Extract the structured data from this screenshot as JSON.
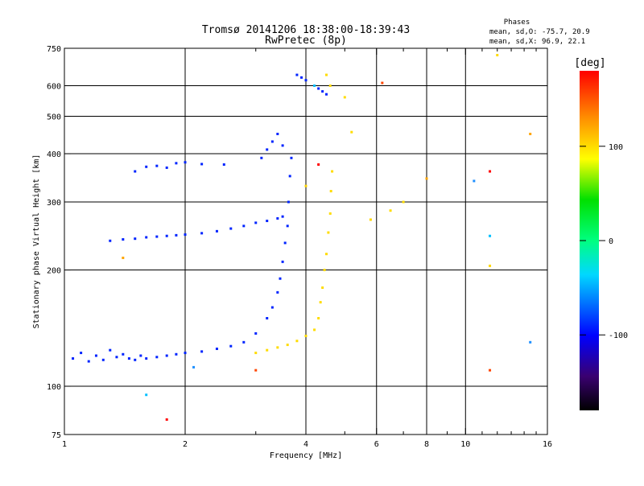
{
  "chart_data": {
    "type": "scatter",
    "title": "Tromsø 20141206 18:38:00-18:39:43",
    "subtitle": "RwPretec (8p)",
    "xlabel": "Frequency [MHz]",
    "ylabel": "Stationary phase Virtual Height [km]",
    "x_scale": "log",
    "y_scale": "log",
    "xlim": [
      1,
      16
    ],
    "ylim": [
      75,
      750
    ],
    "x_ticks": [
      1,
      2,
      4,
      6,
      8,
      10,
      16
    ],
    "x_minor_ticks": [
      3,
      5,
      7,
      9,
      11,
      12,
      13,
      14,
      15
    ],
    "x_gridlines": [
      2,
      4,
      6,
      8,
      10
    ],
    "y_ticks": [
      75,
      100,
      200,
      300,
      400,
      500,
      600,
      750
    ],
    "y_gridlines": [
      100,
      200,
      300,
      400,
      500,
      600
    ],
    "grid": true,
    "phases_legend": {
      "title": "Phases",
      "line1": "mean, sd,O: -75.7, 20.9",
      "line2": "mean, sd,X:  96.9, 22.1"
    },
    "colorbar": {
      "unit": "[deg]",
      "range": [
        -180,
        180
      ],
      "ticks": [
        100,
        0,
        -100
      ]
    },
    "series": [
      {
        "name": "O",
        "color_phase": -90,
        "points": [
          [
            1.05,
            118
          ],
          [
            1.1,
            122
          ],
          [
            1.15,
            116
          ],
          [
            1.2,
            120
          ],
          [
            1.25,
            117
          ],
          [
            1.3,
            124
          ],
          [
            1.35,
            119
          ],
          [
            1.4,
            121
          ],
          [
            1.45,
            118
          ],
          [
            1.5,
            117
          ],
          [
            1.55,
            120
          ],
          [
            1.6,
            118
          ],
          [
            1.7,
            119
          ],
          [
            1.8,
            120
          ],
          [
            1.9,
            121
          ],
          [
            2.0,
            122
          ],
          [
            2.2,
            123
          ],
          [
            2.4,
            125
          ],
          [
            2.6,
            127
          ],
          [
            2.8,
            130
          ],
          [
            3.0,
            137
          ],
          [
            3.2,
            150
          ],
          [
            3.3,
            160
          ],
          [
            3.4,
            175
          ],
          [
            3.45,
            190
          ],
          [
            3.5,
            210
          ],
          [
            3.55,
            235
          ],
          [
            3.6,
            260
          ],
          [
            3.62,
            300
          ],
          [
            3.65,
            350
          ],
          [
            3.68,
            390
          ],
          [
            1.3,
            238
          ],
          [
            1.4,
            240
          ],
          [
            1.5,
            241
          ],
          [
            1.6,
            243
          ],
          [
            1.7,
            244
          ],
          [
            1.8,
            245
          ],
          [
            1.9,
            246
          ],
          [
            2.0,
            247
          ],
          [
            2.2,
            249
          ],
          [
            2.4,
            252
          ],
          [
            2.6,
            256
          ],
          [
            2.8,
            260
          ],
          [
            3.0,
            265
          ],
          [
            3.2,
            268
          ],
          [
            3.4,
            272
          ],
          [
            3.5,
            275
          ],
          [
            1.5,
            360
          ],
          [
            1.6,
            370
          ],
          [
            1.7,
            372
          ],
          [
            1.8,
            368
          ],
          [
            1.9,
            378
          ],
          [
            2.0,
            380
          ],
          [
            2.2,
            376
          ],
          [
            2.5,
            375
          ],
          [
            3.1,
            390
          ],
          [
            3.2,
            410
          ],
          [
            3.3,
            430
          ],
          [
            3.4,
            450
          ],
          [
            3.5,
            420
          ],
          [
            3.8,
            640
          ],
          [
            3.9,
            630
          ],
          [
            4.0,
            620
          ],
          [
            4.3,
            590
          ],
          [
            4.4,
            580
          ],
          [
            4.5,
            570
          ]
        ]
      },
      {
        "name": "X",
        "color_phase": 100,
        "points": [
          [
            3.0,
            122
          ],
          [
            3.2,
            124
          ],
          [
            3.4,
            126
          ],
          [
            3.6,
            128
          ],
          [
            3.8,
            131
          ],
          [
            4.0,
            135
          ],
          [
            4.2,
            140
          ],
          [
            4.3,
            150
          ],
          [
            4.35,
            165
          ],
          [
            4.4,
            180
          ],
          [
            4.45,
            200
          ],
          [
            4.5,
            220
          ],
          [
            4.55,
            250
          ],
          [
            4.6,
            280
          ],
          [
            4.62,
            320
          ],
          [
            4.65,
            360
          ],
          [
            4.5,
            640
          ],
          [
            4.6,
            600
          ],
          [
            5.0,
            560
          ],
          [
            5.2,
            455
          ],
          [
            6.5,
            285
          ],
          [
            7.0,
            300
          ],
          [
            12.0,
            720
          ]
        ]
      }
    ],
    "scattered_points": [
      [
        8.0,
        345
      ],
      [
        10.5,
        340
      ],
      [
        11.5,
        110
      ],
      [
        11.5,
        205
      ],
      [
        11.5,
        245
      ],
      [
        11.5,
        360
      ],
      [
        14.5,
        450
      ],
      [
        14.5,
        130
      ],
      [
        6.2,
        610
      ],
      [
        5.8,
        270
      ],
      [
        1.6,
        95
      ],
      [
        1.8,
        82
      ],
      [
        1.4,
        215
      ],
      [
        2.1,
        112
      ],
      [
        3.0,
        110
      ],
      [
        4.0,
        330
      ],
      [
        4.2,
        600
      ],
      [
        4.3,
        375
      ]
    ]
  }
}
